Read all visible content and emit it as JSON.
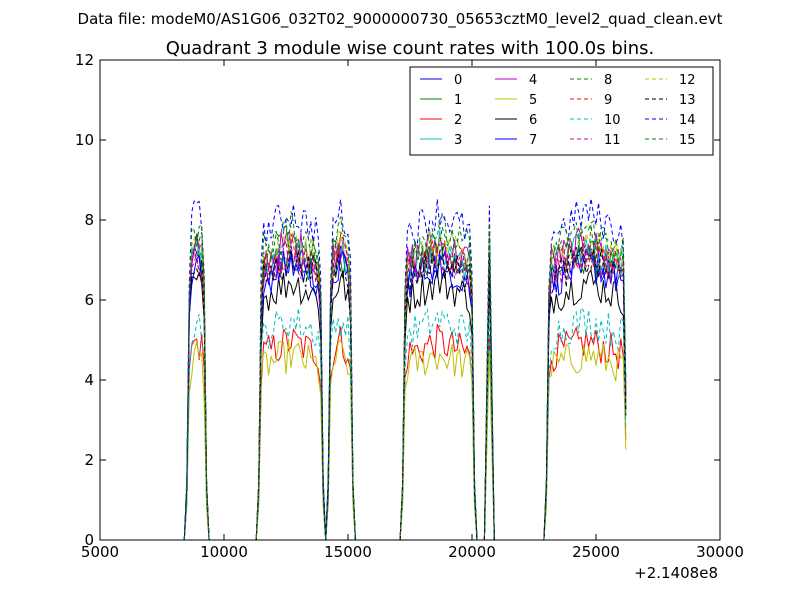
{
  "figure": {
    "suptitle": "Data file: modeM0/AS1G06_032T02_9000000730_05653cztM0_level2_quad_clean.evt",
    "offset_label": "+2.1408e8"
  },
  "chart_data": {
    "type": "line",
    "title": "Quadrant 3 module wise count rates with 100.0s bins.",
    "xlabel": "",
    "ylabel": "",
    "x_offset": "+2.1408e8",
    "xlim": [
      5000,
      30000
    ],
    "ylim": [
      0,
      12
    ],
    "xticks": [
      5000,
      10000,
      15000,
      20000,
      25000,
      30000
    ],
    "xtick_labels": [
      "5000",
      "10000",
      "15000",
      "20000",
      "25000",
      "30000"
    ],
    "yticks": [
      0,
      2,
      4,
      6,
      8,
      10,
      12
    ],
    "ytick_labels": [
      "0",
      "2",
      "4",
      "6",
      "8",
      "10",
      "12"
    ],
    "grid": false,
    "legend_position": "top-right",
    "legend_columns": 4,
    "segments": [
      {
        "start": 8500,
        "end": 9300
      },
      {
        "start": 11400,
        "end": 14000
      },
      {
        "start": 14200,
        "end": 15200
      },
      {
        "start": 17200,
        "end": 20100
      },
      {
        "start": 20500,
        "end": 20900
      },
      {
        "start": 23000,
        "end": 26250
      }
    ],
    "series": [
      {
        "name": "0",
        "color": "#0000ff",
        "style": "solid",
        "level": 6.5
      },
      {
        "name": "1",
        "color": "#008000",
        "style": "solid",
        "level": 6.6
      },
      {
        "name": "2",
        "color": "#ff0000",
        "style": "solid",
        "level": 4.6
      },
      {
        "name": "3",
        "color": "#00bfbf",
        "style": "solid",
        "level": 6.8
      },
      {
        "name": "4",
        "color": "#bf00bf",
        "style": "solid",
        "level": 6.9
      },
      {
        "name": "5",
        "color": "#bfbf00",
        "style": "solid",
        "level": 4.3
      },
      {
        "name": "6",
        "color": "#000000",
        "style": "solid",
        "level": 6.0
      },
      {
        "name": "7",
        "color": "#0000ff",
        "style": "solid",
        "level": 6.4
      },
      {
        "name": "8",
        "color": "#008000",
        "style": "dashed",
        "level": 7.0
      },
      {
        "name": "9",
        "color": "#ff0000",
        "style": "dashed",
        "level": 6.7
      },
      {
        "name": "10",
        "color": "#00bfbf",
        "style": "dashed",
        "level": 5.1
      },
      {
        "name": "11",
        "color": "#bf00bf",
        "style": "dashed",
        "level": 6.6
      },
      {
        "name": "12",
        "color": "#bfbf00",
        "style": "dashed",
        "level": 6.9
      },
      {
        "name": "13",
        "color": "#000000",
        "style": "dashed",
        "level": 6.5
      },
      {
        "name": "14",
        "color": "#0000ff",
        "style": "dashed",
        "level": 7.6
      },
      {
        "name": "15",
        "color": "#008000",
        "style": "dashed",
        "level": 7.2
      }
    ]
  }
}
